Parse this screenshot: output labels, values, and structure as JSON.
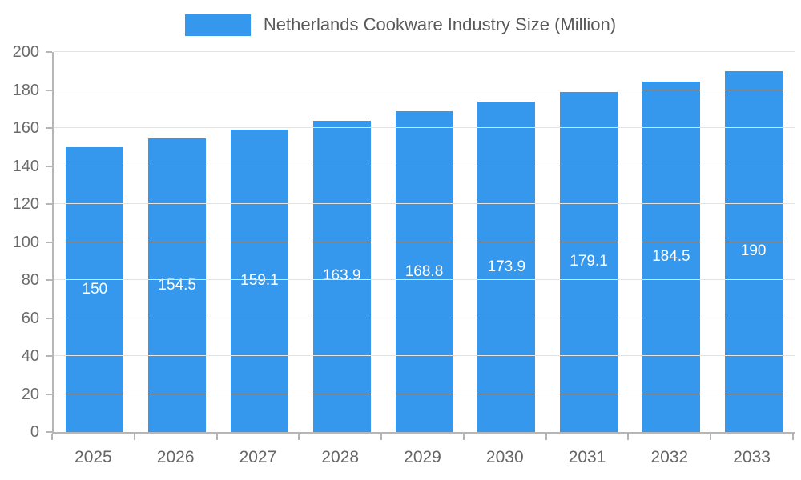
{
  "legend": {
    "label": "Netherlands Cookware Industry Size (Million)"
  },
  "chart_data": {
    "type": "bar",
    "title": "Netherlands Cookware Industry Size (Million)",
    "categories": [
      "2025",
      "2026",
      "2027",
      "2028",
      "2029",
      "2030",
      "2031",
      "2032",
      "2033"
    ],
    "values": [
      150,
      154.5,
      159.1,
      163.9,
      168.8,
      173.9,
      179.1,
      184.5,
      190
    ],
    "xlabel": "",
    "ylabel": "",
    "ylim": [
      0,
      200
    ],
    "ytick_step": 20,
    "grid": true,
    "legend_position": "top",
    "bar_color": "#3598EC",
    "value_label_color": "#ffffff",
    "axis_color": "#b6b6b6",
    "gridline_color": "#e3e3e3",
    "tick_label_color": "#6b6b6b"
  }
}
